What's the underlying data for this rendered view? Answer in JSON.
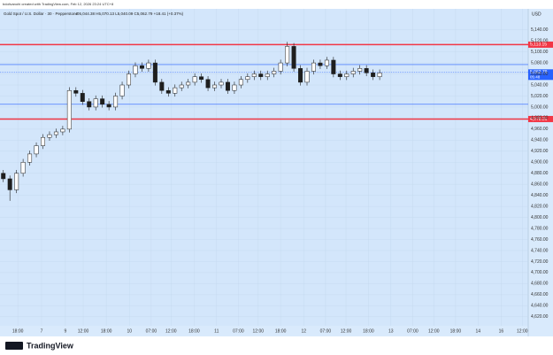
{
  "chart_data": {
    "type": "candlestick",
    "credit": "bdolivanohi created with TradingView.com, Feb 12, 2026 23:24 UTC+8",
    "title": "Gold Spot / U.S. Dollar · 30 · Pepperstone",
    "ohlc_text": "O5,044.38 H5,070.13 L5,040.09 C5,062.79 +18.41 (+0.37%)",
    "currency": "USD",
    "brand": "TradingView",
    "up_color": "#ffffff",
    "down_color": "#1e1e1e",
    "open": [
      4880,
      4870,
      4850,
      4880,
      4900,
      4915,
      4930,
      4945,
      4950,
      4955,
      4960,
      5030,
      5025,
      5010,
      5000,
      5015,
      5005,
      5000,
      5020,
      5040,
      5060,
      5075,
      5070,
      5080,
      5045,
      5030,
      5025,
      5035,
      5040,
      5045,
      5055,
      5050,
      5035,
      5040,
      5045,
      5030,
      5040,
      5050,
      5055,
      5060,
      5055,
      5060,
      5065,
      5080,
      5110,
      5070,
      5045,
      5065,
      5080,
      5075,
      5085,
      5060,
      5055,
      5060,
      5065,
      5070,
      5062,
      5055
    ],
    "high": [
      4886,
      4876,
      4886,
      4906,
      4921,
      4936,
      4951,
      4956,
      4961,
      4966,
      5036,
      5036,
      5031,
      5016,
      5021,
      5021,
      5011,
      5026,
      5046,
      5066,
      5081,
      5081,
      5086,
      5086,
      5051,
      5036,
      5041,
      5046,
      5051,
      5061,
      5061,
      5056,
      5046,
      5051,
      5051,
      5046,
      5056,
      5061,
      5066,
      5066,
      5066,
      5071,
      5086,
      5118,
      5116,
      5076,
      5071,
      5086,
      5086,
      5091,
      5091,
      5066,
      5066,
      5071,
      5076,
      5076,
      5068,
      5068
    ],
    "low": [
      4864,
      4830,
      4844,
      4874,
      4894,
      4909,
      4924,
      4939,
      4944,
      4949,
      4954,
      5019,
      5004,
      4994,
      4994,
      4999,
      4994,
      4994,
      5014,
      5034,
      5054,
      5064,
      5064,
      5039,
      5024,
      5019,
      5019,
      5029,
      5034,
      5039,
      5044,
      5029,
      5029,
      5034,
      5024,
      5024,
      5034,
      5044,
      5049,
      5049,
      5049,
      5054,
      5059,
      5074,
      5064,
      5039,
      5039,
      5059,
      5069,
      5069,
      5054,
      5049,
      5049,
      5054,
      5059,
      5056,
      5049,
      5049
    ],
    "close": [
      4870,
      4850,
      4880,
      4900,
      4915,
      4930,
      4945,
      4950,
      4955,
      4960,
      5030,
      5025,
      5010,
      5000,
      5015,
      5005,
      5000,
      5020,
      5040,
      5060,
      5075,
      5070,
      5080,
      5045,
      5030,
      5025,
      5035,
      5040,
      5045,
      5055,
      5050,
      5035,
      5040,
      5045,
      5030,
      5040,
      5050,
      5055,
      5060,
      5055,
      5060,
      5065,
      5080,
      5110,
      5070,
      5045,
      5065,
      5080,
      5075,
      5085,
      5060,
      5055,
      5060,
      5065,
      5070,
      5062,
      5055,
      5062
    ],
    "xlim": [
      0,
      80
    ],
    "xticks": [
      {
        "value": 2.7,
        "label": "18:00"
      },
      {
        "value": 6.3,
        "label": "7"
      },
      {
        "value": 9.9,
        "label": "9"
      },
      {
        "value": 12.6,
        "label": "12:00"
      },
      {
        "value": 16.1,
        "label": "18:00"
      },
      {
        "value": 19.6,
        "label": "10"
      },
      {
        "value": 22.9,
        "label": "07:00"
      },
      {
        "value": 25.9,
        "label": "12:00"
      },
      {
        "value": 29.4,
        "label": "18:00"
      },
      {
        "value": 32.8,
        "label": "11"
      },
      {
        "value": 36.1,
        "label": "07:00"
      },
      {
        "value": 39.1,
        "label": "12:00"
      },
      {
        "value": 42.5,
        "label": "18:00"
      },
      {
        "value": 46,
        "label": "12"
      },
      {
        "value": 49.3,
        "label": "07:00"
      },
      {
        "value": 52.4,
        "label": "12:00"
      },
      {
        "value": 55.8,
        "label": "18:00"
      },
      {
        "value": 59.2,
        "label": "13"
      },
      {
        "value": 62.5,
        "label": "07:00"
      },
      {
        "value": 65.7,
        "label": "12:00"
      },
      {
        "value": 69,
        "label": "18:00"
      },
      {
        "value": 72.4,
        "label": "14"
      },
      {
        "value": 75.9,
        "label": "16"
      },
      {
        "value": 79.1,
        "label": "12:00"
      }
    ],
    "ylim": [
      4610,
      5178
    ],
    "yticks": [
      {
        "value": 5140,
        "label": "5,140.00"
      },
      {
        "value": 5120,
        "label": "5,120.00"
      },
      {
        "value": 5100,
        "label": "5,100.00"
      },
      {
        "value": 5080,
        "label": "5,080.00"
      },
      {
        "value": 5060,
        "label": "5,060.00"
      },
      {
        "value": 5040,
        "label": "5,040.00"
      },
      {
        "value": 5020,
        "label": "5,020.00"
      },
      {
        "value": 5000,
        "label": "5,000.00"
      },
      {
        "value": 4980,
        "label": "4,980.00"
      },
      {
        "value": 4960,
        "label": "4,960.00"
      },
      {
        "value": 4940,
        "label": "4,940.00"
      },
      {
        "value": 4920,
        "label": "4,920.00"
      },
      {
        "value": 4900,
        "label": "4,900.00"
      },
      {
        "value": 4880,
        "label": "4,880.00"
      },
      {
        "value": 4860,
        "label": "4,860.00"
      },
      {
        "value": 4840,
        "label": "4,840.00"
      },
      {
        "value": 4820,
        "label": "4,820.00"
      },
      {
        "value": 4800,
        "label": "4,800.00"
      },
      {
        "value": 4780,
        "label": "4,780.00"
      },
      {
        "value": 4760,
        "label": "4,760.00"
      },
      {
        "value": 4740,
        "label": "4,740.00"
      },
      {
        "value": 4720,
        "label": "4,720.00"
      },
      {
        "value": 4700,
        "label": "4,700.00"
      },
      {
        "value": 4680,
        "label": "4,680.00"
      },
      {
        "value": 4660,
        "label": "4,660.00"
      },
      {
        "value": 4640,
        "label": "4,640.00"
      },
      {
        "value": 4620,
        "label": "4,620.00"
      }
    ],
    "grid": true,
    "levels": [
      {
        "value": 5113.15,
        "label": "5,113.15",
        "color": "#f23645"
      },
      {
        "value": 4978.31,
        "label": "4,978.31",
        "color": "#f23645"
      },
      {
        "value": 5077,
        "color": "#2962ff"
      },
      {
        "value": 5005,
        "color": "#2962ff"
      }
    ],
    "last_price": {
      "value": 5062.79,
      "label": "5,062.79",
      "countdown": "05:48",
      "color": "#2962ff"
    }
  }
}
